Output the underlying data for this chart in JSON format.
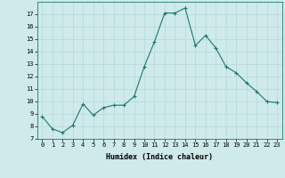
{
  "x": [
    0,
    1,
    2,
    3,
    4,
    5,
    6,
    7,
    8,
    9,
    10,
    11,
    12,
    13,
    14,
    15,
    16,
    17,
    18,
    19,
    20,
    21,
    22,
    23
  ],
  "y": [
    8.8,
    7.8,
    7.5,
    8.1,
    9.8,
    8.9,
    9.5,
    9.7,
    9.7,
    10.4,
    12.8,
    14.8,
    17.1,
    17.1,
    17.5,
    14.5,
    15.3,
    14.3,
    12.8,
    12.3,
    11.5,
    10.8,
    10.0,
    9.9
  ],
  "xlabel": "Humidex (Indice chaleur)",
  "ylim": [
    7,
    18
  ],
  "xlim": [
    -0.5,
    23.5
  ],
  "yticks": [
    7,
    8,
    9,
    10,
    11,
    12,
    13,
    14,
    15,
    16,
    17
  ],
  "xtick_labels": [
    "0",
    "1",
    "2",
    "3",
    "4",
    "5",
    "6",
    "7",
    "8",
    "9",
    "10",
    "11",
    "12",
    "13",
    "14",
    "15",
    "16",
    "17",
    "18",
    "19",
    "20",
    "21",
    "22",
    "23"
  ],
  "line_color": "#1a7a6e",
  "marker_color": "#1a7a6e",
  "bg_color": "#ceeaea",
  "grid_color": "#b8d8d8",
  "border_color": "#1a7a6e",
  "xlabel_fontsize": 6.0,
  "tick_fontsize": 5.0
}
